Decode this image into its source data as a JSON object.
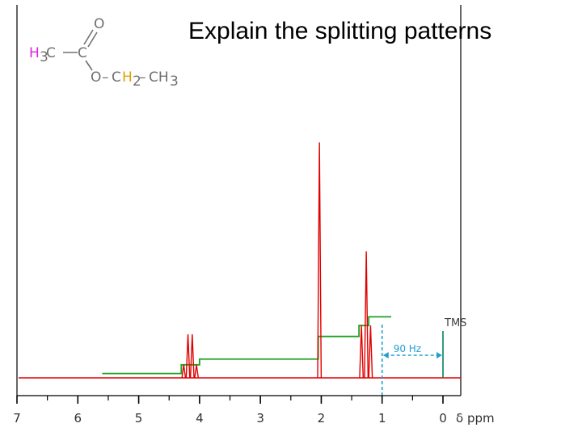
{
  "slide": {
    "title": "Explain the splitting patterns"
  },
  "molecule": {
    "methyl_H": "H",
    "methyl_sub": "3",
    "methyl_C": "C",
    "carbonyl_C": "C",
    "carbonyl_O": "O",
    "ester_O": "O",
    "dash1": "–",
    "ch2_C": "C",
    "ch2_H": "H",
    "ch2_sub": "2",
    "dash2": "–",
    "ch3": "CH",
    "ch3_sub": "3",
    "colors": {
      "methyl_H": "#e020e0",
      "methylene_H": "#e0a000",
      "bonds": "#707070",
      "text": "#707070"
    }
  },
  "chart_data": {
    "type": "line",
    "title": "",
    "xlabel": "δ ppm",
    "x_reversed": true,
    "xlim": [
      7,
      0
    ],
    "ticks": [
      "7",
      "6",
      "5",
      "4",
      "3",
      "2",
      "1",
      "0"
    ],
    "series": [
      {
        "name": "",
        "color": "#e00000",
        "peaks": [
          {
            "x": 4.26,
            "h": 0.3
          },
          {
            "x": 4.19,
            "h": 1.0
          },
          {
            "x": 4.12,
            "h": 1.0
          },
          {
            "x": 4.05,
            "h": 0.3
          },
          {
            "x": 2.03,
            "h": 5.4
          },
          {
            "x": 1.34,
            "h": 1.2
          },
          {
            "x": 1.26,
            "h": 2.9
          },
          {
            "x": 1.19,
            "h": 1.2
          }
        ]
      },
      {
        "name": "",
        "color": "#20a020",
        "integration_steps": [
          {
            "x_start": 5.6,
            "x_end": 4.3,
            "level": 0.1
          },
          {
            "x_start": 4.3,
            "x_end": 4.0,
            "level": 0.3
          },
          {
            "x_start": 4.0,
            "x_end": 2.05,
            "level": 0.43
          },
          {
            "x_start": 2.05,
            "x_end": 1.38,
            "level": 0.95
          },
          {
            "x_start": 1.38,
            "x_end": 1.22,
            "level": 1.2
          },
          {
            "x_start": 1.22,
            "x_end": 0.85,
            "level": 1.4
          }
        ]
      }
    ],
    "annotations": {
      "tms_label": "TMS",
      "tms_x": 0,
      "hz_label": "90 Hz",
      "hz_from": 1.0,
      "hz_to": 0,
      "tms_color": "#008060",
      "hz_color": "#20a0d0"
    },
    "grid": false
  }
}
